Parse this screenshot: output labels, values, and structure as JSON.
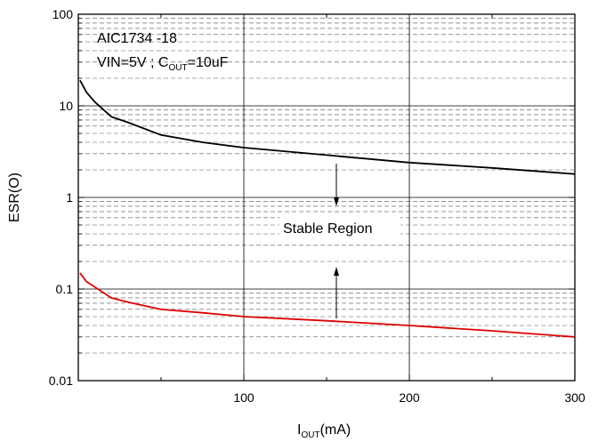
{
  "chart_data": {
    "type": "line",
    "yscale": "log",
    "xlim": [
      0,
      300
    ],
    "ylim": [
      0.01,
      100
    ],
    "x_ticks": [
      100,
      200,
      300
    ],
    "x_tick_labels": [
      "100",
      "200",
      "300"
    ],
    "y_ticks": [
      0.01,
      0.1,
      1,
      10,
      100
    ],
    "y_tick_labels": [
      "0.01",
      "0.1",
      "1",
      "10",
      "100"
    ],
    "xlabel": {
      "main": "I",
      "sub": "OUT",
      "suffix": "(mA)"
    },
    "ylabel": "ESR(O)",
    "grid": true,
    "annotation_title": "AIC1734 -18",
    "annotation_conditions": {
      "prefix": "VIN=5V ; C",
      "sub": "OUT",
      "suffix": "=10uF"
    },
    "region_label": "Stable Region",
    "series": [
      {
        "color": "#000000",
        "x": [
          1,
          5,
          10,
          20,
          30,
          50,
          75,
          100,
          150,
          200,
          250,
          300
        ],
        "y": [
          19,
          14,
          11,
          7.6,
          6.6,
          4.8,
          4.0,
          3.5,
          2.9,
          2.4,
          2.1,
          1.8
        ]
      },
      {
        "color": "#e00000",
        "x": [
          1,
          5,
          10,
          20,
          30,
          50,
          75,
          100,
          150,
          200,
          250,
          300
        ],
        "y": [
          0.15,
          0.12,
          0.105,
          0.08,
          0.072,
          0.06,
          0.055,
          0.05,
          0.045,
          0.04,
          0.035,
          0.03
        ]
      }
    ]
  }
}
